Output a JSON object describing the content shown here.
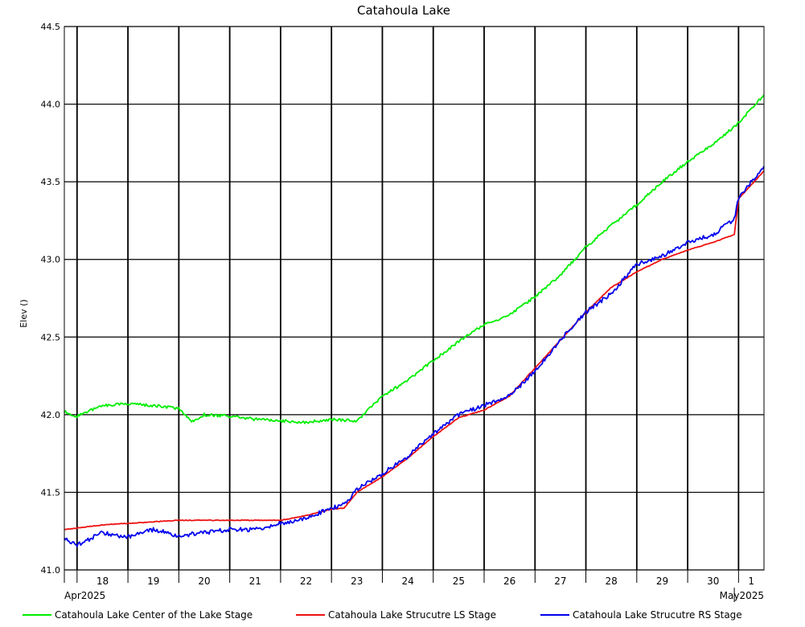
{
  "chart_data": {
    "type": "line",
    "title": "Catahoula Lake",
    "ylabel": "Elev ()",
    "xlabel": "",
    "ylim": [
      41.0,
      44.5
    ],
    "y_ticks": [
      "41.0",
      "41.5",
      "42.0",
      "42.5",
      "43.0",
      "43.5",
      "44.0",
      "44.5"
    ],
    "x_range_days": [
      "2025-04-17T18:00",
      "2025-05-01T12:00"
    ],
    "day_ticks": [
      {
        "label": "18",
        "date": "2025-04-18"
      },
      {
        "label": "19",
        "date": "2025-04-19"
      },
      {
        "label": "20",
        "date": "2025-04-20"
      },
      {
        "label": "21",
        "date": "2025-04-21"
      },
      {
        "label": "22",
        "date": "2025-04-22"
      },
      {
        "label": "23",
        "date": "2025-04-23"
      },
      {
        "label": "24",
        "date": "2025-04-24"
      },
      {
        "label": "25",
        "date": "2025-04-25"
      },
      {
        "label": "26",
        "date": "2025-04-26"
      },
      {
        "label": "27",
        "date": "2025-04-27"
      },
      {
        "label": "28",
        "date": "2025-04-28"
      },
      {
        "label": "29",
        "date": "2025-04-29"
      },
      {
        "label": "30",
        "date": "2025-04-30"
      },
      {
        "label": "1",
        "date": "2025-05-01"
      }
    ],
    "month_labels": [
      {
        "label": "Apr2025",
        "date": "2025-04-17T18:00"
      },
      {
        "label": "May2025",
        "date": "2025-05-01T12:00"
      }
    ],
    "month_boundary": "2025-04-30T22:00",
    "grid": true,
    "legend_position": "bottom",
    "series": [
      {
        "name": "Catahoula Lake Center of the Lake Stage",
        "color": "#00ee00",
        "x": [
          "2025-04-17T18:00",
          "2025-04-18T00:00",
          "2025-04-18T12:00",
          "2025-04-19T00:00",
          "2025-04-19T12:00",
          "2025-04-20T00:00",
          "2025-04-20T06:00",
          "2025-04-20T12:00",
          "2025-04-21T00:00",
          "2025-04-21T12:00",
          "2025-04-22T00:00",
          "2025-04-22T12:00",
          "2025-04-23T00:00",
          "2025-04-23T12:00",
          "2025-04-24T00:00",
          "2025-04-24T12:00",
          "2025-04-25T00:00",
          "2025-04-25T12:00",
          "2025-04-26T00:00",
          "2025-04-26T12:00",
          "2025-04-27T00:00",
          "2025-04-27T12:00",
          "2025-04-28T00:00",
          "2025-04-28T12:00",
          "2025-04-29T00:00",
          "2025-04-29T12:00",
          "2025-04-30T00:00",
          "2025-04-30T12:00",
          "2025-05-01T00:00",
          "2025-05-01T12:00"
        ],
        "y": [
          42.02,
          41.99,
          42.06,
          42.07,
          42.06,
          42.04,
          41.95,
          42.0,
          41.99,
          41.97,
          41.96,
          41.95,
          41.97,
          41.96,
          42.12,
          42.22,
          42.35,
          42.47,
          42.58,
          42.64,
          42.76,
          42.9,
          43.08,
          43.22,
          43.35,
          43.5,
          43.63,
          43.74,
          43.88,
          44.06
        ]
      },
      {
        "name": "Catahoula Lake Strucutre LS Stage",
        "color": "#ee1111",
        "x": [
          "2025-04-17T18:00",
          "2025-04-18T00:00",
          "2025-04-18T12:00",
          "2025-04-19T00:00",
          "2025-04-20T00:00",
          "2025-04-21T00:00",
          "2025-04-22T00:00",
          "2025-04-22T12:00",
          "2025-04-23T00:00",
          "2025-04-23T06:00",
          "2025-04-23T12:00",
          "2025-04-24T00:00",
          "2025-04-24T12:00",
          "2025-04-25T00:00",
          "2025-04-25T12:00",
          "2025-04-26T00:00",
          "2025-04-26T12:00",
          "2025-04-27T00:00",
          "2025-04-27T12:00",
          "2025-04-28T00:00",
          "2025-04-28T12:00",
          "2025-04-29T00:00",
          "2025-04-29T12:00",
          "2025-04-30T00:00",
          "2025-04-30T12:00",
          "2025-04-30T22:00",
          "2025-05-01T00:00",
          "2025-05-01T12:00"
        ],
        "y": [
          41.26,
          41.27,
          41.29,
          41.3,
          41.32,
          41.32,
          41.32,
          41.35,
          41.39,
          41.4,
          41.5,
          41.6,
          41.72,
          41.86,
          41.98,
          42.03,
          42.12,
          42.3,
          42.48,
          42.66,
          42.82,
          42.92,
          43.0,
          43.06,
          43.11,
          43.16,
          43.39,
          43.57
        ]
      },
      {
        "name": "Catahoula Lake Strucutre RS Stage",
        "color": "#0000ee",
        "x": [
          "2025-04-17T18:00",
          "2025-04-18T00:00",
          "2025-04-18T12:00",
          "2025-04-19T00:00",
          "2025-04-19T12:00",
          "2025-04-20T00:00",
          "2025-04-20T12:00",
          "2025-04-21T00:00",
          "2025-04-21T12:00",
          "2025-04-22T00:00",
          "2025-04-22T12:00",
          "2025-04-23T00:00",
          "2025-04-23T06:00",
          "2025-04-23T12:00",
          "2025-04-24T00:00",
          "2025-04-24T12:00",
          "2025-04-25T00:00",
          "2025-04-25T12:00",
          "2025-04-26T00:00",
          "2025-04-26T12:00",
          "2025-04-27T00:00",
          "2025-04-27T12:00",
          "2025-04-28T00:00",
          "2025-04-28T12:00",
          "2025-04-29T00:00",
          "2025-04-29T12:00",
          "2025-04-30T00:00",
          "2025-04-30T12:00",
          "2025-04-30T22:00",
          "2025-05-01T00:00",
          "2025-05-01T12:00"
        ],
        "y": [
          41.2,
          41.16,
          41.24,
          41.21,
          41.26,
          41.22,
          41.24,
          41.26,
          41.26,
          41.3,
          41.33,
          41.4,
          41.42,
          41.52,
          41.62,
          41.73,
          41.88,
          42.0,
          42.06,
          42.12,
          42.28,
          42.48,
          42.66,
          42.78,
          42.97,
          43.02,
          43.11,
          43.16,
          43.26,
          43.4,
          43.6
        ]
      }
    ]
  }
}
